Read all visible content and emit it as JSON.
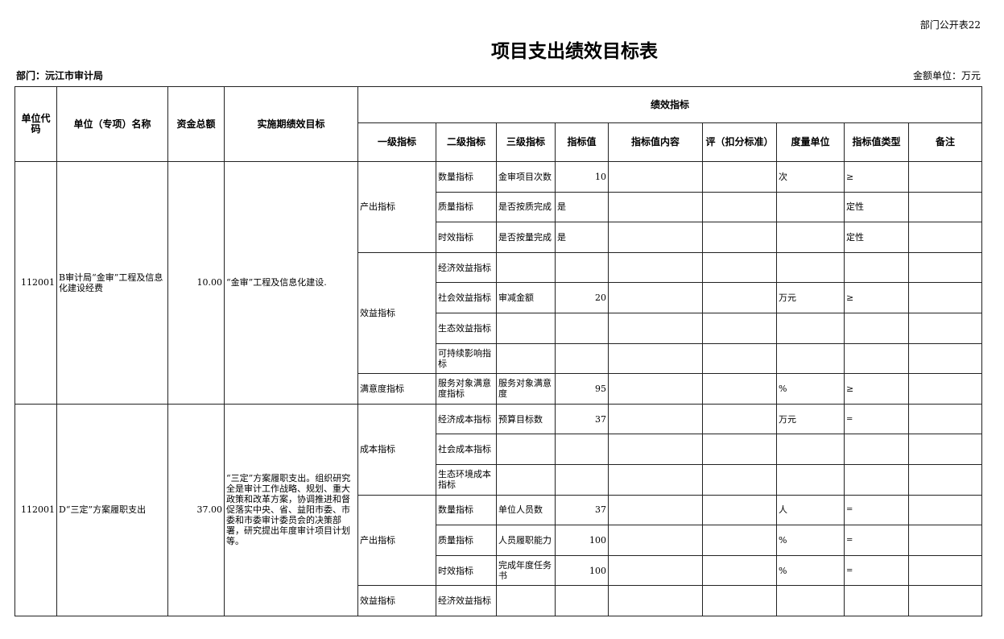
{
  "corner_label": "部门公开表22",
  "title": "项目支出绩效目标表",
  "department": "部门：沅江市审计局",
  "amount_unit": "金额单位：万元",
  "headers": {
    "unit_code": "单位代码",
    "unit_name": "单位（专项）名称",
    "total_funds": "资金总额",
    "goal": "实施期绩效目标",
    "indicators": "绩效指标",
    "level1": "一级指标",
    "level2": "二级指标",
    "level3": "三级指标",
    "value": "指标值",
    "value_content": "指标值内容",
    "criteria": "评（扣分标准）",
    "measure_unit": "度量单位",
    "value_type": "指标值类型",
    "note": "备注"
  },
  "projects": [
    {
      "code": "112001",
      "name": "B审计局“金审”工程及信息化建设经费",
      "funds": "10.00",
      "goal": "“金审”工程及信息化建设.",
      "groups": [
        {
          "level1": "产出指标",
          "rows": [
            {
              "level2": "数量指标",
              "level3": "金审项目次数",
              "value": "10",
              "unit": "次",
              "type": "≥"
            },
            {
              "level2": "质量指标",
              "level3": "是否按质完成",
              "value": "是",
              "unit": "",
              "type": "定性"
            },
            {
              "level2": "时效指标",
              "level3": "是否按量完成",
              "value": "是",
              "unit": "",
              "type": "定性"
            }
          ]
        },
        {
          "level1": "效益指标",
          "rows": [
            {
              "level2": "经济效益指标",
              "level3": "",
              "value": "",
              "unit": "",
              "type": ""
            },
            {
              "level2": "社会效益指标",
              "level3": "审减金额",
              "value": "20",
              "unit": "万元",
              "type": "≥"
            },
            {
              "level2": "生态效益指标",
              "level3": "",
              "value": "",
              "unit": "",
              "type": ""
            },
            {
              "level2": "可持续影响指标",
              "level3": "",
              "value": "",
              "unit": "",
              "type": ""
            }
          ]
        },
        {
          "level1": "满意度指标",
          "rows": [
            {
              "level2": "服务对象满意度指标",
              "level3": "服务对象满意度",
              "value": "95",
              "unit": "%",
              "type": "≥"
            }
          ]
        }
      ]
    },
    {
      "code": "112001",
      "name": "D“三定”方案履职支出",
      "funds": "37.00",
      "goal": "“三定”方案履职支出。组织研究全是审计工作战略、规划、重大政策和改革方案，协调推进和督促落实中央、省、益阳市委、市委和市委审计委员会的决策部署，研究提出年度审计项目计划等。",
      "groups": [
        {
          "level1": "成本指标",
          "rows": [
            {
              "level2": "经济成本指标",
              "level3": "预算目标数",
              "value": "37",
              "unit": "万元",
              "type": "="
            },
            {
              "level2": "社会成本指标",
              "level3": "",
              "value": "",
              "unit": "",
              "type": ""
            },
            {
              "level2": "生态环境成本指标",
              "level3": "",
              "value": "",
              "unit": "",
              "type": ""
            }
          ]
        },
        {
          "level1": "产出指标",
          "rows": [
            {
              "level2": "数量指标",
              "level3": "单位人员数",
              "value": "37",
              "unit": "人",
              "type": "="
            },
            {
              "level2": "质量指标",
              "level3": "人员履职能力",
              "value": "100",
              "unit": "%",
              "type": "="
            },
            {
              "level2": "时效指标",
              "level3": "完成年度任务书",
              "value": "100",
              "unit": "%",
              "type": "="
            }
          ]
        },
        {
          "level1": "效益指标",
          "rows": [
            {
              "level2": "经济效益指标",
              "level3": "",
              "value": "",
              "unit": "",
              "type": ""
            }
          ]
        }
      ]
    }
  ]
}
